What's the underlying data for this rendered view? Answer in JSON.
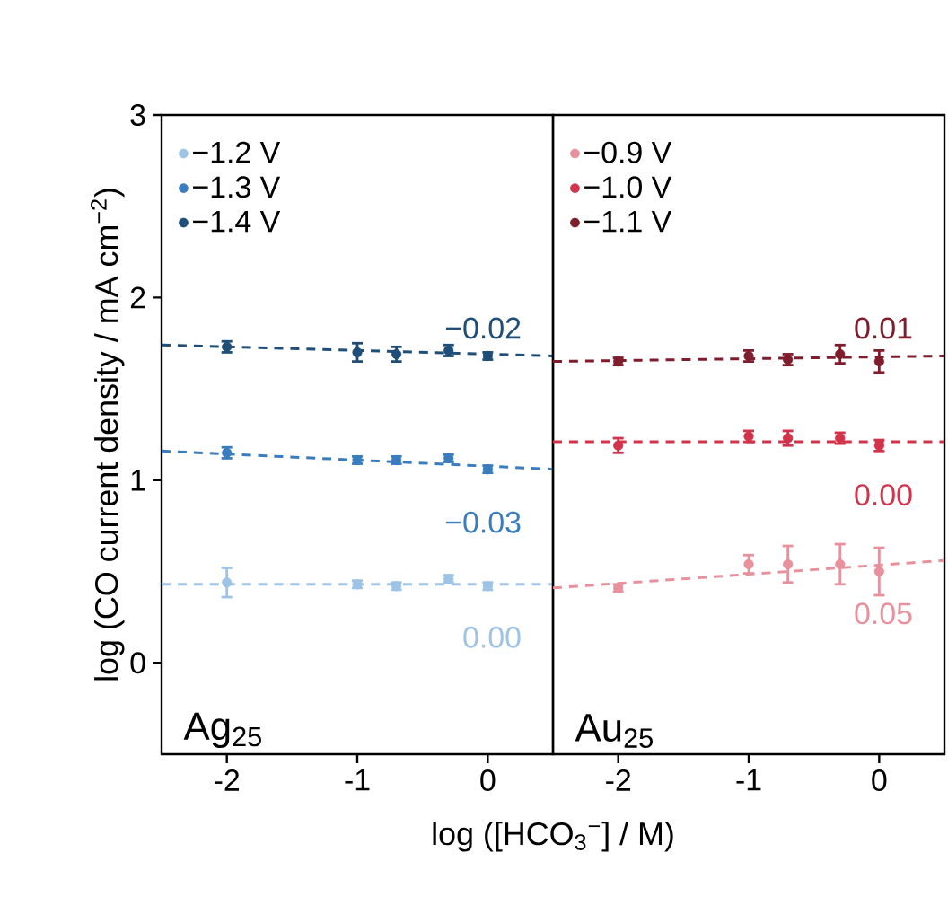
{
  "chart_data": [
    {
      "type": "scatter",
      "ylabel": "log (CO current density / mA cm$^{−2}$)",
      "xlabel": "log ([HCO$_{3}$$^{−}$] / M)",
      "xlim": [
        -2.5,
        0.5
      ],
      "xticks": [
        -2,
        -1,
        0
      ],
      "ylim": [
        -0.5,
        3
      ],
      "yticks": [
        0,
        1,
        2,
        3
      ],
      "legend": "top left",
      "marker": "circle",
      "grid": false,
      "series": [
        {
          "name": "−1.2 V",
          "color": "#9dc3e6",
          "x": [
            -2,
            -1,
            -0.7,
            -0.3,
            0
          ],
          "values": [
            0.44,
            0.43,
            0.42,
            0.46,
            0.42
          ],
          "errors": [
            0.08,
            0.02,
            0.02,
            0.02,
            0.02
          ]
        },
        {
          "name": "−1.3 V",
          "color": "#3a7dbf",
          "x": [
            -2,
            -1,
            -0.7,
            -0.3,
            0
          ],
          "values": [
            1.15,
            1.11,
            1.11,
            1.12,
            1.06
          ],
          "errors": [
            0.03,
            0.02,
            0.02,
            0.02,
            0.02
          ]
        },
        {
          "name": "−1.4 V",
          "color": "#1f4e79",
          "x": [
            -2,
            -1,
            -0.7,
            -0.3,
            0
          ],
          "values": [
            1.73,
            1.7,
            1.69,
            1.71,
            1.68
          ],
          "errors": [
            0.03,
            0.05,
            0.04,
            0.03,
            0.02
          ]
        },
        {
          "type": "line",
          "line_style": "dashed",
          "marker": "none",
          "color": "#9dc3e6",
          "x": [
            -2.5,
            0.5
          ],
          "values": [
            0.43,
            0.43
          ]
        },
        {
          "type": "line",
          "line_style": "dashed",
          "marker": "none",
          "color": "#3a7dbf",
          "x": [
            -2.5,
            0.5
          ],
          "values": [
            1.16,
            1.06
          ]
        },
        {
          "type": "line",
          "line_style": "dashed",
          "marker": "none",
          "color": "#1f4e79",
          "x": [
            -2.5,
            0.5
          ],
          "values": [
            1.74,
            1.68
          ]
        }
      ],
      "annotations": [
        "0.00",
        "−0.03",
        "−0.02",
        "Ag$_{25}$"
      ]
    },
    {
      "type": "scatter",
      "xlim": [
        -2.5,
        0.5
      ],
      "xticks": [
        -2,
        -1,
        0
      ],
      "ylim": [
        -0.5,
        3
      ],
      "yticks": [
        0,
        1,
        2,
        3
      ],
      "tick_labels": "x",
      "legend": "top left",
      "marker": "circle",
      "grid": false,
      "series": [
        {
          "name": "−0.9 V",
          "color": "#e8909b",
          "x": [
            -2,
            -1,
            -0.7,
            -0.3,
            0
          ],
          "values": [
            0.41,
            0.54,
            0.54,
            0.54,
            0.5
          ],
          "errors": [
            0.02,
            0.05,
            0.1,
            0.11,
            0.13
          ]
        },
        {
          "name": "−1.0 V",
          "color": "#d3324b",
          "x": [
            -2,
            -1,
            -0.7,
            -0.3,
            0
          ],
          "values": [
            1.19,
            1.24,
            1.23,
            1.23,
            1.19
          ],
          "errors": [
            0.04,
            0.03,
            0.04,
            0.03,
            0.03
          ]
        },
        {
          "name": "−1.1 V",
          "color": "#7f1d2c",
          "x": [
            -2,
            -1,
            -0.7,
            -0.3,
            0
          ],
          "values": [
            1.65,
            1.68,
            1.66,
            1.69,
            1.65
          ],
          "errors": [
            0.02,
            0.03,
            0.03,
            0.05,
            0.06
          ]
        },
        {
          "type": "line",
          "line_style": "dashed",
          "marker": "none",
          "color": "#e8909b",
          "x": [
            -2.5,
            0.5
          ],
          "values": [
            0.41,
            0.56
          ]
        },
        {
          "type": "line",
          "line_style": "dashed",
          "marker": "none",
          "color": "#d3324b",
          "x": [
            -2.5,
            0.5
          ],
          "values": [
            1.21,
            1.21
          ]
        },
        {
          "type": "line",
          "line_style": "dashed",
          "marker": "none",
          "color": "#7f1d2c",
          "x": [
            -2.5,
            0.5
          ],
          "values": [
            1.65,
            1.68
          ]
        }
      ],
      "annotations": [
        "0.05",
        "0.00",
        "0.01",
        "Au$_{25}$"
      ]
    }
  ]
}
